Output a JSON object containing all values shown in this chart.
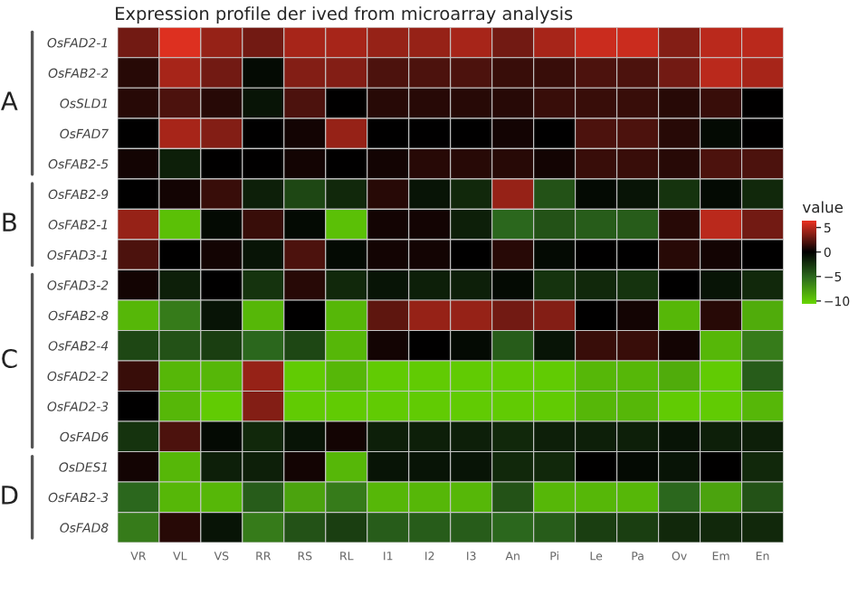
{
  "chart_data": {
    "type": "heatmap",
    "title": "Expression profile der ived from microarray analysis",
    "clabel": "value",
    "annotations": [
      "A",
      "B",
      "C",
      "D"
    ],
    "categories": [
      "VR",
      "VL",
      "VS",
      "RR",
      "RS",
      "RL",
      "I1",
      "I2",
      "I3",
      "An",
      "Pi",
      "Le",
      "Pa",
      "Ov",
      "Em",
      "En"
    ],
    "y_categories": [
      "OsFAD2-1",
      "OsFAB2-2",
      "OsSLD1",
      "OsFAD7",
      "OsFAB2-5",
      "OsFAB2-9",
      "OsFAB2-1",
      "OsFAD3-1",
      "OsFAD3-2",
      "OsFAB2-8",
      "OsFAB2-4",
      "OsFAD2-2",
      "OsFAD2-3",
      "OsFAD6",
      "OsDES1",
      "OsFAB2-3",
      "OsFAD8"
    ],
    "cells": [
      [
        3,
        6,
        4,
        3,
        4.5,
        4.5,
        4,
        4,
        4.5,
        3,
        4.5,
        5.5,
        5.5,
        3.5,
        5,
        5
      ],
      [
        1,
        4.5,
        3,
        -0.5,
        3.5,
        3.5,
        2,
        2,
        2,
        1.5,
        1.5,
        2,
        2,
        3,
        5,
        4.5
      ],
      [
        1,
        2,
        1,
        -1,
        2,
        0,
        1,
        1,
        1,
        1,
        1.5,
        1.5,
        1.5,
        1,
        1.5,
        0
      ],
      [
        0,
        4.5,
        3.5,
        0,
        0.5,
        4,
        0,
        0,
        0,
        0.5,
        0,
        2,
        2,
        1,
        -0.5,
        0
      ],
      [
        0.5,
        -1.5,
        0,
        0,
        0.5,
        0,
        0.5,
        1,
        1,
        1,
        0.5,
        1.5,
        1.5,
        1,
        2,
        2
      ],
      [
        0,
        0.5,
        1.5,
        -1.5,
        -3.5,
        -2,
        1,
        -1,
        -2,
        4,
        -4,
        -0.5,
        -1,
        -2.5,
        -0.5,
        -2
      ],
      [
        4,
        -9.5,
        -0.5,
        1.5,
        -0.5,
        -9.5,
        0.5,
        0.5,
        -1.5,
        -5,
        -4,
        -4.5,
        -4.5,
        1,
        5,
        3
      ],
      [
        2,
        0,
        0.5,
        -1,
        2,
        -0.5,
        0.5,
        0.5,
        0,
        1,
        -0.5,
        0,
        0,
        1,
        0.5,
        0
      ],
      [
        0.5,
        -1.5,
        0,
        -2.5,
        1,
        -2,
        -1,
        -1.5,
        -1.5,
        -0.5,
        -2.5,
        -2,
        -2.5,
        0,
        -1,
        -2
      ],
      [
        -9,
        -6,
        -1,
        -9,
        0,
        -9,
        2.5,
        4,
        4,
        3,
        3.5,
        0,
        0.5,
        -9,
        1,
        -8.5
      ],
      [
        -3.5,
        -4,
        -3,
        -5,
        -3.5,
        -9,
        0.5,
        0,
        -0.5,
        -4.5,
        -1,
        1.5,
        1.5,
        0.5,
        -9,
        -6
      ],
      [
        1.5,
        -9,
        -9,
        4,
        -10,
        -9,
        -10,
        -10,
        -10,
        -10,
        -10,
        -9,
        -9,
        -8.5,
        -10,
        -4.5
      ],
      [
        0,
        -9,
        -10,
        3.5,
        -10,
        -10,
        -10,
        -10,
        -10,
        -10,
        -10,
        -9,
        -9,
        -10,
        -10,
        -9
      ],
      [
        -2.5,
        2,
        -0.5,
        -2,
        -1,
        0.5,
        -1.5,
        -1.5,
        -1.5,
        -2,
        -1.5,
        -1.5,
        -1.5,
        -1,
        -1.5,
        -1.5
      ],
      [
        0.5,
        -9,
        -1.5,
        -1.5,
        0.5,
        -9,
        -1,
        -1,
        -1,
        -2,
        -2,
        0,
        -0.5,
        -1,
        0,
        -2
      ],
      [
        -5,
        -9,
        -9,
        -4.5,
        -8,
        -6,
        -9,
        -9,
        -9,
        -4,
        -9,
        -9,
        -9,
        -5,
        -8,
        -4
      ],
      [
        -6,
        1,
        -1,
        -6,
        -4,
        -3,
        -4.5,
        -4.5,
        -4.5,
        -5,
        -4.5,
        -3,
        -3,
        -2,
        -2,
        -2
      ]
    ],
    "clim": [
      -10.5,
      6.5
    ],
    "cticks": [
      5,
      0,
      -5,
      -10
    ]
  }
}
